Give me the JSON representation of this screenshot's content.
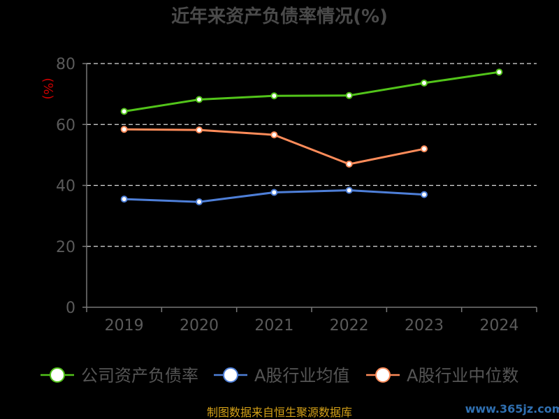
{
  "title": "近年来资产负债率情况(%)",
  "unit": "(%)",
  "footer": "制图数据来自恒生聚源数据库",
  "watermark": "www.365jz.com",
  "chart_data": {
    "type": "line",
    "title": "近年来资产负债率情况(%)",
    "ylabel": "(%)",
    "xlabel": "",
    "categories": [
      "2019",
      "2020",
      "2021",
      "2022",
      "2023",
      "2024"
    ],
    "ylim": [
      0,
      80
    ],
    "yticks": [
      0,
      20,
      40,
      60,
      80
    ],
    "grid": true,
    "legend_position": "bottom",
    "series": [
      {
        "name": "公司资产负债率",
        "color": "#52c41a",
        "values": [
          64.3,
          68.2,
          69.4,
          69.5,
          73.6,
          77.2
        ]
      },
      {
        "name": "A股行业均值",
        "color": "#4e7fd8",
        "values": [
          35.5,
          34.6,
          37.7,
          38.4,
          37.0,
          null
        ]
      },
      {
        "name": "A股行业中位数",
        "color": "#ff8c5a",
        "values": [
          58.4,
          58.2,
          56.6,
          47.0,
          52.0,
          null
        ]
      }
    ]
  }
}
